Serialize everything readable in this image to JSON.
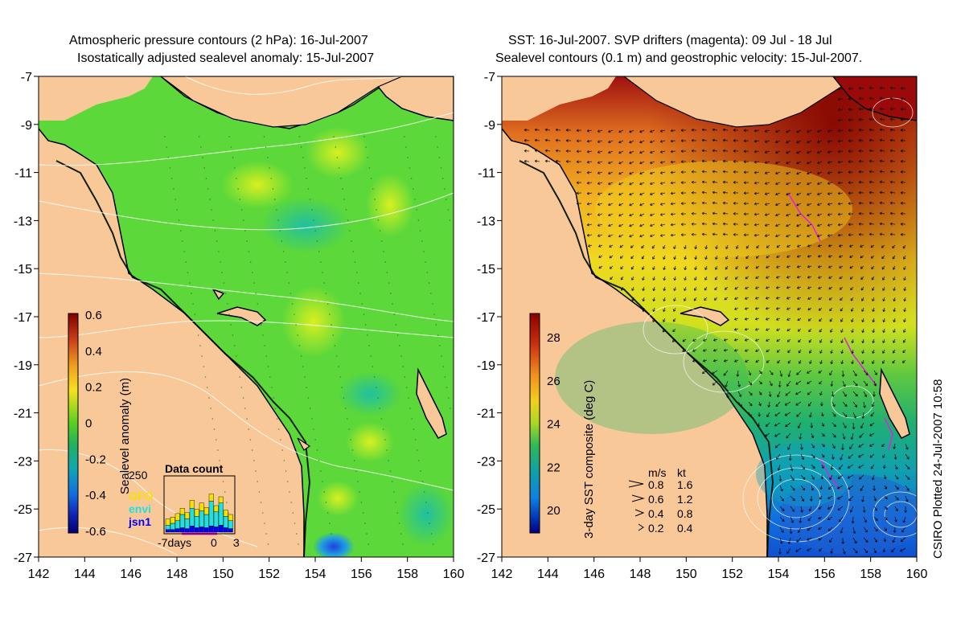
{
  "left_panel": {
    "title_line1": "Atmospheric pressure contours (2 hPa): 16-Jul-2007",
    "title_line2": "Isostatically adjusted sealevel anomaly: 15-Jul-2007",
    "y_ticks": [
      "-7",
      "-9",
      "-11",
      "-13",
      "-15",
      "-17",
      "-19",
      "-21",
      "-23",
      "-25",
      "-27"
    ],
    "x_ticks": [
      "142",
      "144",
      "146",
      "148",
      "150",
      "152",
      "154",
      "156",
      "158",
      "160"
    ],
    "colorbar": {
      "label": "Sealevel anomaly (m)",
      "ticks": [
        "0.6",
        "0.4",
        "0.2",
        "0",
        "-0.2",
        "-0.4",
        "-0.6"
      ],
      "colors": [
        "#7f0000",
        "#c8401a",
        "#f0a020",
        "#f5e020",
        "#68d820",
        "#20b850",
        "#10a8a0",
        "#1090e0",
        "#1030c0",
        "#000070"
      ]
    },
    "data_count": {
      "title": "Data count",
      "ymax_label": "250",
      "x_labels": [
        "-7days",
        "0",
        "3"
      ],
      "missions": [
        "GFO",
        "envi",
        "jsn1"
      ],
      "mission_colors": [
        "#f5e000",
        "#20e0e0",
        "#0000ff"
      ]
    }
  },
  "right_panel": {
    "title_line1": "SST: 16-Jul-2007. SVP drifters (magenta): 09 Jul - 18 Jul",
    "title_line2": "Sealevel contours (0.1 m) and geostrophic velocity: 15-Jul-2007.",
    "y_ticks": [
      "-7",
      "-9",
      "-11",
      "-13",
      "-15",
      "-17",
      "-19",
      "-21",
      "-23",
      "-25",
      "-27"
    ],
    "x_ticks": [
      "142",
      "144",
      "146",
      "148",
      "150",
      "152",
      "154",
      "156",
      "158",
      "160"
    ],
    "colorbar": {
      "label": "3-day SST composite (deg C)",
      "ticks": [
        "28",
        "26",
        "24",
        "22",
        "20"
      ],
      "colors": [
        "#8b0000",
        "#c03010",
        "#f08020",
        "#f0c020",
        "#d8e020",
        "#70d030",
        "#20b060",
        "#10a0a0",
        "#1080e0",
        "#0040c0",
        "#000080"
      ]
    },
    "velocity_legend": {
      "header_ms": "m/s",
      "header_kt": "kt",
      "rows": [
        {
          "ms": "0.8",
          "kt": "1.6"
        },
        {
          "ms": "0.6",
          "kt": "1.2"
        },
        {
          "ms": "0.4",
          "kt": "0.8"
        },
        {
          "ms": "0.2",
          "kt": "0.4"
        }
      ]
    }
  },
  "credit": "CSIRO Plotted 24-Jul-2007 10:58",
  "colors": {
    "land": "#f9c898",
    "left_ocean": "#5cd83a",
    "coast": "#000000"
  }
}
